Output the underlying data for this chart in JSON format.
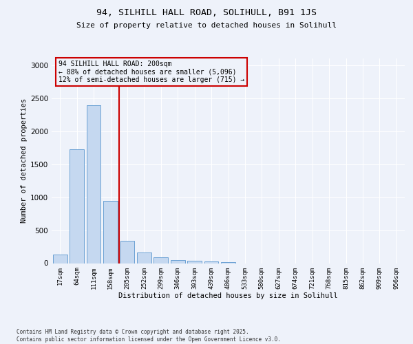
{
  "title1": "94, SILHILL HALL ROAD, SOLIHULL, B91 1JS",
  "title2": "Size of property relative to detached houses in Solihull",
  "xlabel": "Distribution of detached houses by size in Solihull",
  "ylabel": "Number of detached properties",
  "categories": [
    "17sqm",
    "64sqm",
    "111sqm",
    "158sqm",
    "205sqm",
    "252sqm",
    "299sqm",
    "346sqm",
    "393sqm",
    "439sqm",
    "486sqm",
    "533sqm",
    "580sqm",
    "627sqm",
    "674sqm",
    "721sqm",
    "768sqm",
    "815sqm",
    "862sqm",
    "909sqm",
    "956sqm"
  ],
  "values": [
    130,
    1720,
    2390,
    940,
    340,
    160,
    85,
    50,
    40,
    25,
    15,
    0,
    0,
    0,
    0,
    0,
    0,
    0,
    0,
    0,
    0
  ],
  "bar_color": "#c5d8f0",
  "bar_edge_color": "#6aa0d4",
  "vline_color": "#cc0000",
  "annotation_title": "94 SILHILL HALL ROAD: 200sqm",
  "annotation_line1": "← 88% of detached houses are smaller (5,096)",
  "annotation_line2": "12% of semi-detached houses are larger (715) →",
  "annotation_box_edgecolor": "#cc0000",
  "background_color": "#eef2fa",
  "footer1": "Contains HM Land Registry data © Crown copyright and database right 2025.",
  "footer2": "Contains public sector information licensed under the Open Government Licence v3.0.",
  "ylim": [
    0,
    3100
  ],
  "yticks": [
    0,
    500,
    1000,
    1500,
    2000,
    2500,
    3000
  ],
  "vline_pos": 3.5
}
